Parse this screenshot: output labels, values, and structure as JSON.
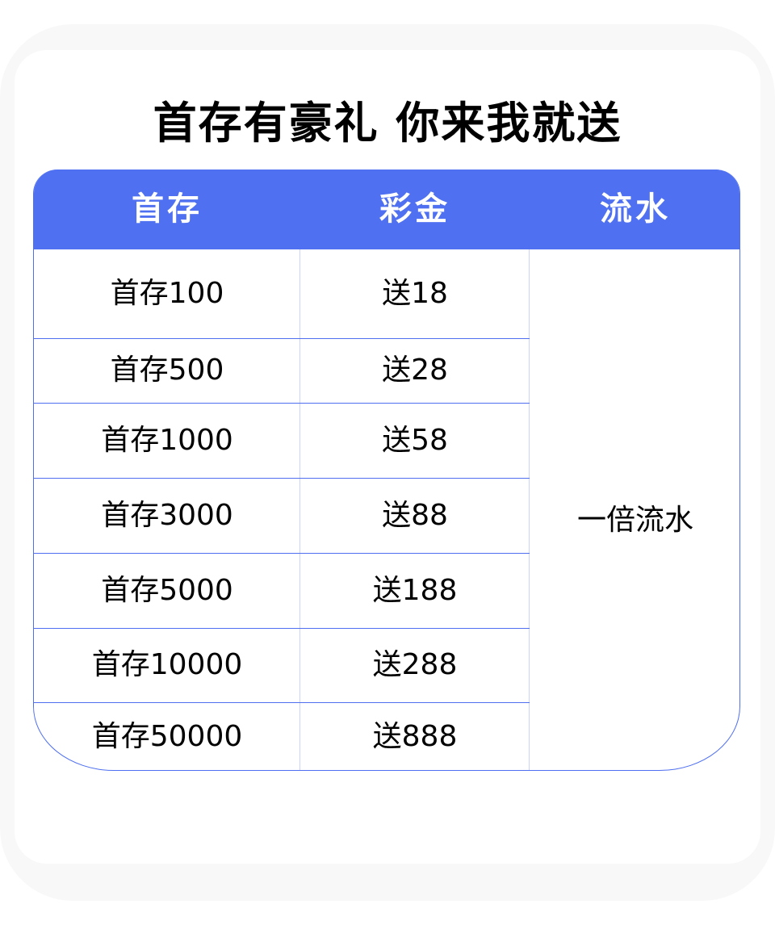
{
  "title": "首存有豪礼 你来我就送",
  "colors": {
    "header": "#4f70f0",
    "border": "#4f6ff0"
  },
  "table": {
    "headers": [
      "首存",
      "彩金",
      "流水"
    ],
    "rows": [
      {
        "deposit": "首存100",
        "bonus": "送18"
      },
      {
        "deposit": "首存500",
        "bonus": "送28"
      },
      {
        "deposit": "首存1000",
        "bonus": "送58"
      },
      {
        "deposit": "首存3000",
        "bonus": "送88"
      },
      {
        "deposit": "首存5000",
        "bonus": "送188"
      },
      {
        "deposit": "首存10000",
        "bonus": "送288"
      },
      {
        "deposit": "首存50000",
        "bonus": "送888"
      }
    ],
    "turnover": "一倍流水"
  }
}
